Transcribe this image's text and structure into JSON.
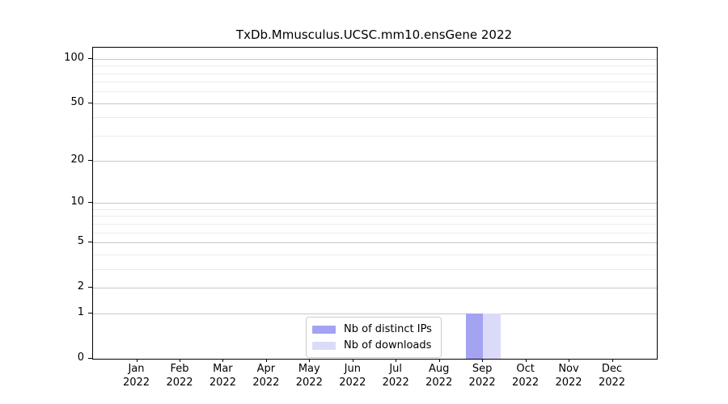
{
  "title": "TxDb.Mmusculus.UCSC.mm10.ensGene 2022",
  "chart_data": {
    "type": "bar",
    "title": "TxDb.Mmusculus.UCSC.mm10.ensGene 2022",
    "categories": [
      "Jan 2022",
      "Feb 2022",
      "Mar 2022",
      "Apr 2022",
      "May 2022",
      "Jun 2022",
      "Jul 2022",
      "Aug 2022",
      "Sep 2022",
      "Oct 2022",
      "Nov 2022",
      "Dec 2022"
    ],
    "series": [
      {
        "name": "Nb of distinct IPs",
        "color": "#a3a3f2",
        "values": [
          0,
          0,
          0,
          0,
          0,
          0,
          0,
          0,
          1,
          0,
          0,
          0
        ]
      },
      {
        "name": "Nb of downloads",
        "color": "#dbdbf9",
        "values": [
          0,
          0,
          0,
          0,
          0,
          0,
          0,
          0,
          1,
          0,
          0,
          0
        ]
      }
    ],
    "y_scale": "log1p",
    "ylim": [
      0,
      119
    ],
    "y_major_ticks": [
      0,
      1,
      2,
      5,
      10,
      20,
      50,
      100
    ],
    "y_minor_gridlines": [
      3,
      4,
      6,
      7,
      8,
      9,
      30,
      40,
      60,
      70,
      80,
      90
    ],
    "grid": "horizontal",
    "legend_position": "bottom-center-inside",
    "xlabel": "",
    "ylabel": ""
  },
  "colors": {
    "background": "#ffffff",
    "axis": "#000000",
    "major_grid": "#c8c8c8",
    "minor_grid": "#ebebeb",
    "legend_border": "#cccccc",
    "text": "#000000"
  }
}
